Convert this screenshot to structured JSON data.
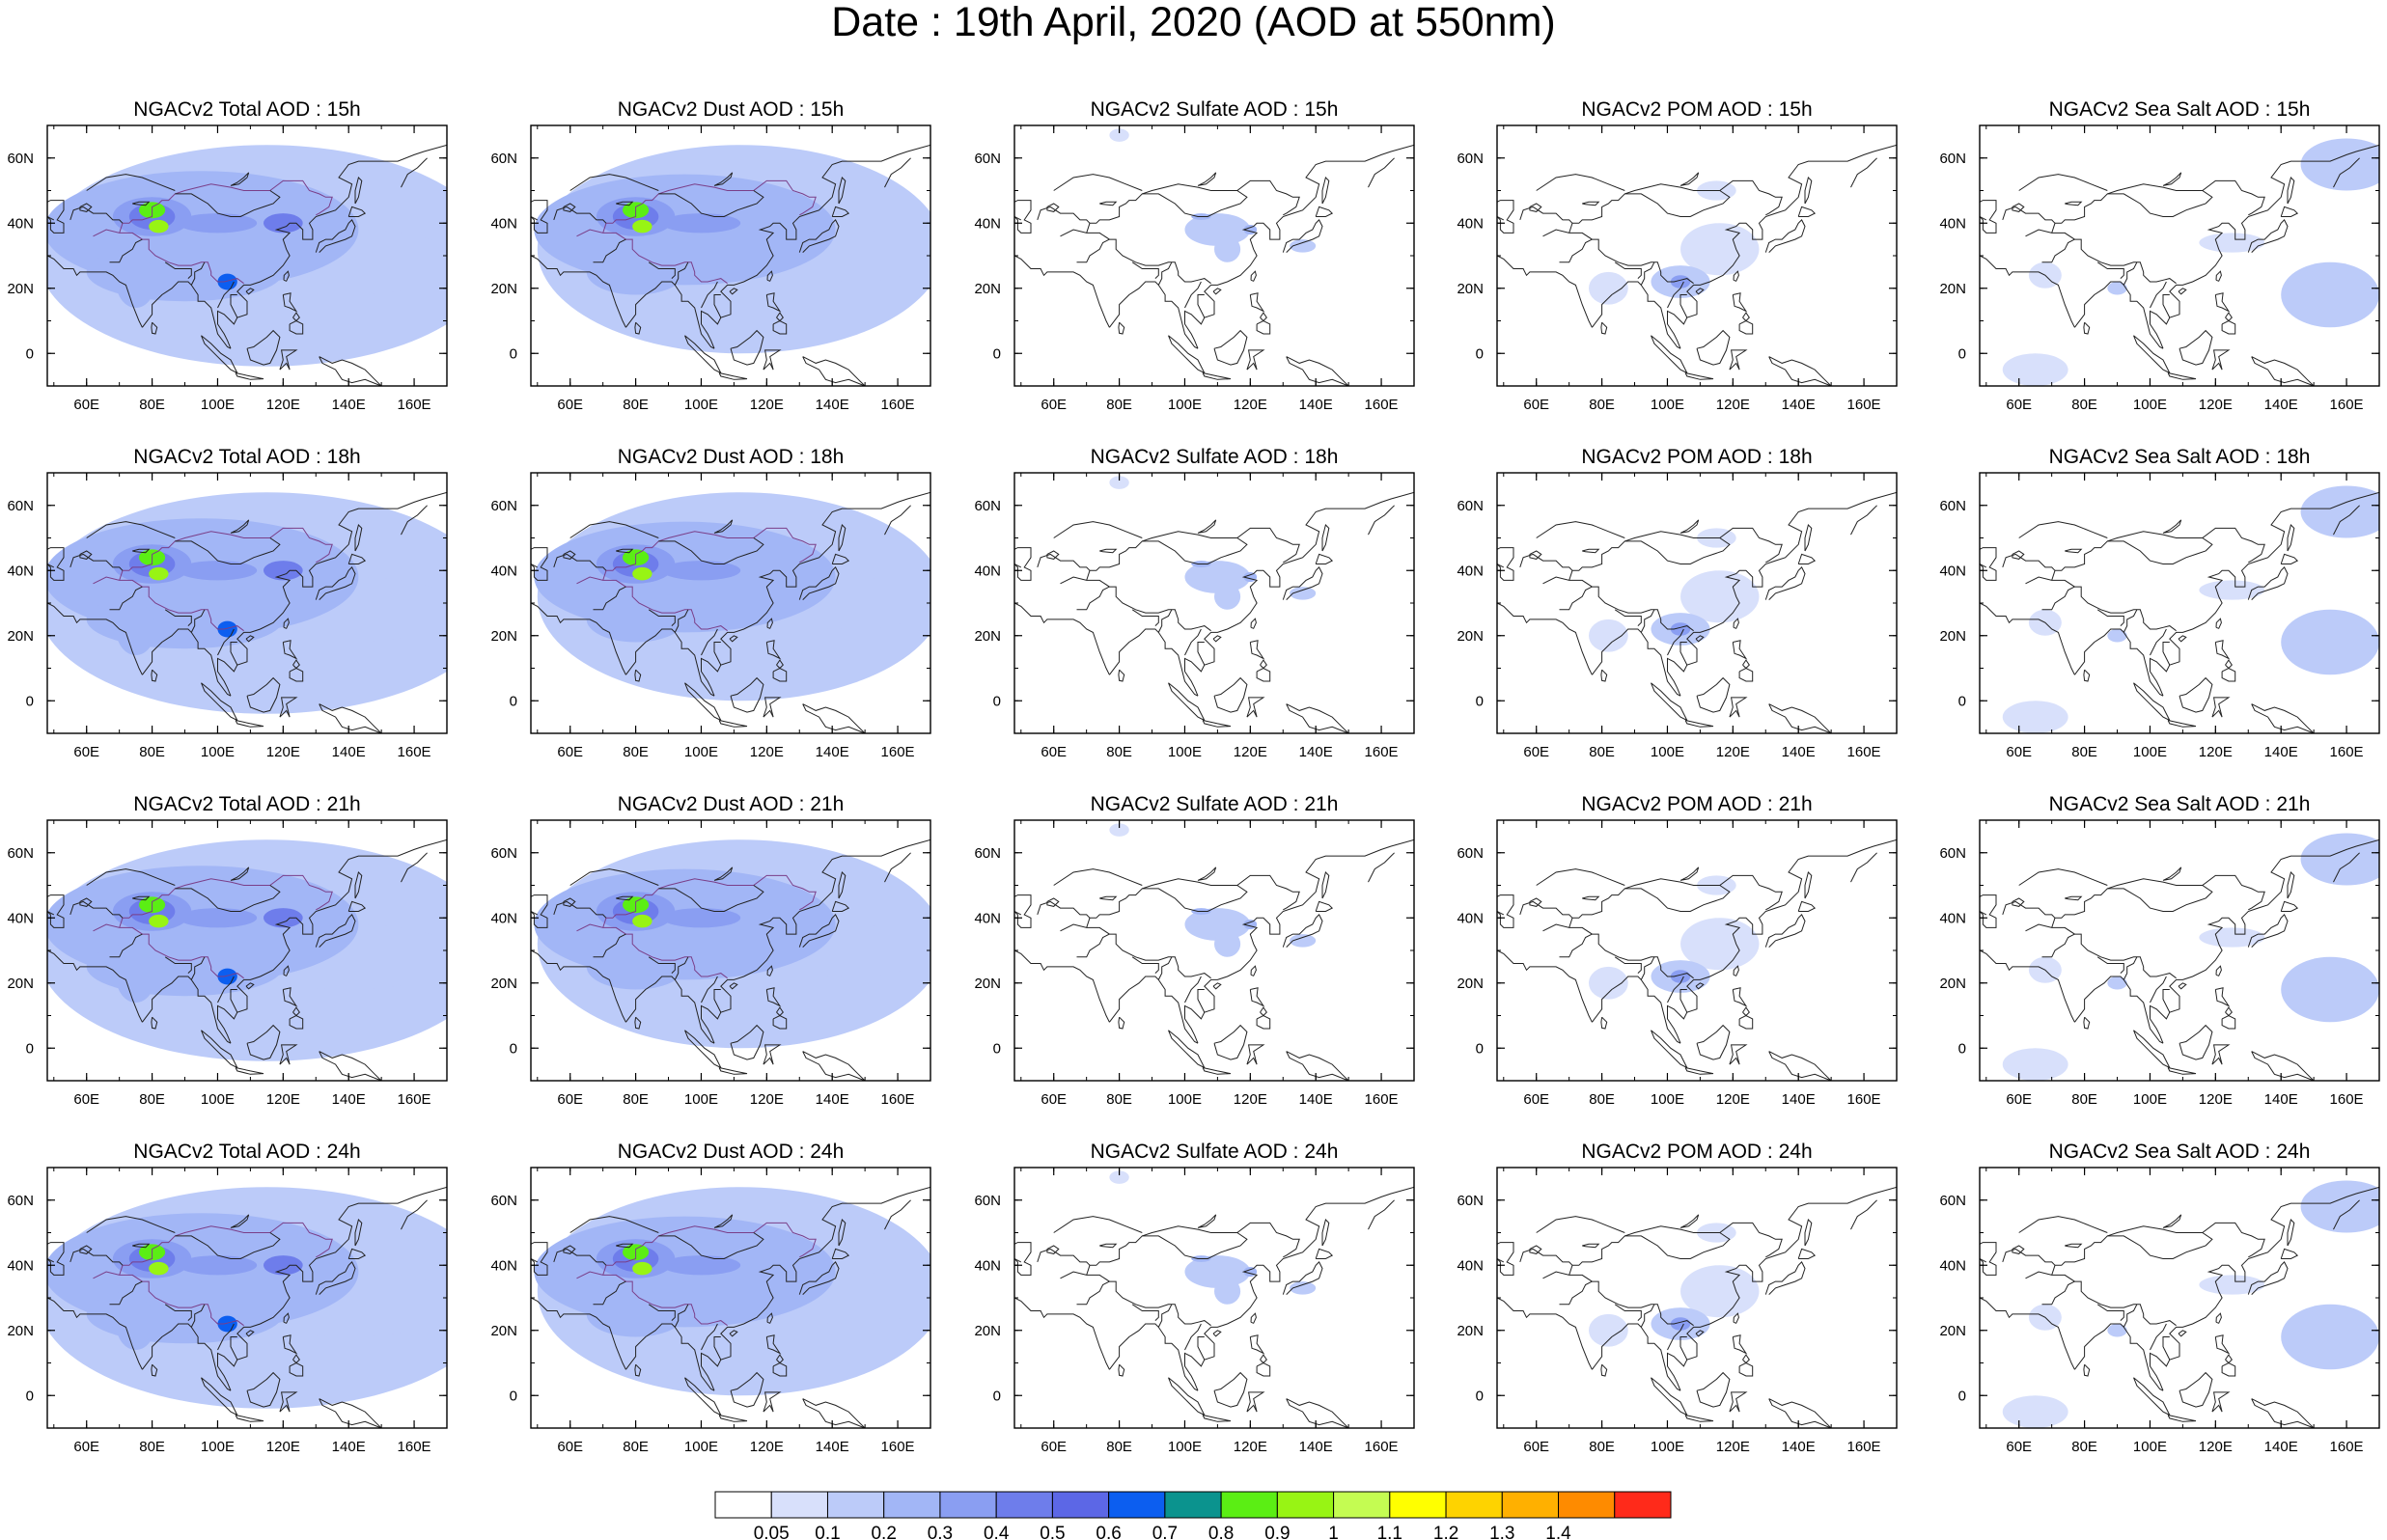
{
  "title": "Date : 19th April, 2020 (AOD at 550nm)",
  "column_types": [
    "Total",
    "Dust",
    "Sulfate",
    "POM",
    "Sea Salt"
  ],
  "row_hours": [
    "15h",
    "18h",
    "21h",
    "24h"
  ],
  "panel_titles": [
    [
      "NGACv2 Total AOD : 15h",
      "NGACv2 Dust AOD : 15h",
      "NGACv2 Sulfate AOD : 15h",
      "NGACv2 POM AOD : 15h",
      "NGACv2 Sea Salt AOD : 15h"
    ],
    [
      "NGACv2 Total AOD : 18h",
      "NGACv2 Dust AOD : 18h",
      "NGACv2 Sulfate AOD : 18h",
      "NGACv2 POM AOD : 18h",
      "NGACv2 Sea Salt AOD : 18h"
    ],
    [
      "NGACv2 Total AOD : 21h",
      "NGACv2 Dust AOD : 21h",
      "NGACv2 Sulfate AOD : 21h",
      "NGACv2 POM AOD : 21h",
      "NGACv2 Sea Salt AOD : 21h"
    ],
    [
      "NGACv2 Total AOD : 24h",
      "NGACv2 Dust AOD : 24h",
      "NGACv2 Sulfate AOD : 24h",
      "NGACv2 POM AOD : 24h",
      "NGACv2 Sea Salt  AOD : 24h"
    ]
  ],
  "map_extent": {
    "lon": [
      48,
      170
    ],
    "lat": [
      -10,
      70
    ]
  },
  "lon_ticks": [
    "60E",
    "80E",
    "100E",
    "120E",
    "140E",
    "160E"
  ],
  "lon_tick_values": [
    60,
    80,
    100,
    120,
    140,
    160
  ],
  "lat_ticks": [
    "0",
    "20N",
    "40N",
    "60N"
  ],
  "lat_tick_values": [
    0,
    20,
    40,
    60
  ],
  "colorbar": {
    "labels": [
      "0.05",
      "0.1",
      "0.2",
      "0.3",
      "0.4",
      "0.5",
      "0.6",
      "0.7",
      "0.8",
      "0.9",
      "1",
      "1.1",
      "1.2",
      "1.3",
      "1.4"
    ],
    "colors": [
      "#ffffff",
      "#d8e0fb",
      "#bccbf9",
      "#a2b6f6",
      "#8a9ef2",
      "#6e7deb",
      "#5c67e6",
      "#0c5ef0",
      "#0b938e",
      "#5bee14",
      "#98f414",
      "#c4fc52",
      "#ffff00",
      "#fed300",
      "#ffb000",
      "#fe8b00",
      "#ff2a1a"
    ]
  }
}
